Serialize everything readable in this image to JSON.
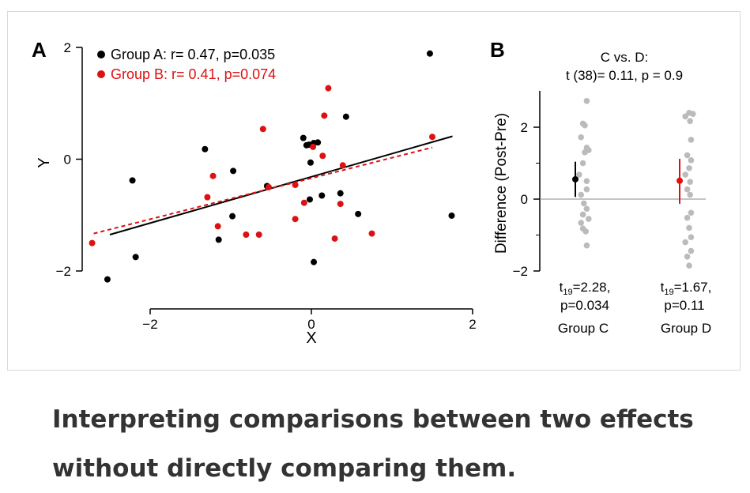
{
  "caption": "Interpreting comparisons between two effects without directly comparing them.",
  "colors": {
    "group_a": "#000000",
    "group_b": "#dd1111",
    "group_d_points": "#bbbbbb",
    "axis": "#000000",
    "zero_line": "#888888"
  },
  "chart_data": [
    {
      "panel_label": "A",
      "type": "scatter",
      "xlabel": "X",
      "ylabel": "Y",
      "xlim": [
        -2.6,
        2.0
      ],
      "ylim": [
        -2.2,
        2.0
      ],
      "x_ticks": [
        -2,
        0,
        2
      ],
      "x_tick_labels": [
        "−2",
        "0",
        "2"
      ],
      "y_ticks": [
        -2,
        0,
        2
      ],
      "y_tick_labels": [
        "−2",
        "0",
        "2"
      ],
      "legend_position": "top-left",
      "series": [
        {
          "name": "Group A: r= 0.47, p=0.035",
          "color": "#000000",
          "fit_line": {
            "style": "solid",
            "x1": -2.5,
            "y1": -1.35,
            "x2": 1.75,
            "y2": 0.41
          },
          "points": [
            [
              -2.53,
              -2.15
            ],
            [
              -2.18,
              -1.75
            ],
            [
              -2.22,
              -0.38
            ],
            [
              -1.32,
              0.18
            ],
            [
              -1.15,
              -1.44
            ],
            [
              -0.97,
              -0.21
            ],
            [
              -0.98,
              -1.02
            ],
            [
              -0.55,
              -0.48
            ],
            [
              -0.1,
              0.38
            ],
            [
              -0.06,
              0.25
            ],
            [
              -0.03,
              0.26
            ],
            [
              0.03,
              0.29
            ],
            [
              0.08,
              0.3
            ],
            [
              -0.01,
              -0.06
            ],
            [
              -0.02,
              -0.72
            ],
            [
              0.03,
              -1.84
            ],
            [
              0.13,
              -0.65
            ],
            [
              0.36,
              -0.61
            ],
            [
              0.43,
              0.76
            ],
            [
              0.58,
              -0.98
            ],
            [
              1.47,
              1.89
            ],
            [
              1.74,
              -1.01
            ]
          ]
        },
        {
          "name": "Group B: r= 0.41, p=0.074",
          "color": "#dd1111",
          "fit_line": {
            "style": "dashed",
            "x1": -2.7,
            "y1": -1.33,
            "x2": 1.5,
            "y2": 0.21
          },
          "points": [
            [
              -2.72,
              -1.5
            ],
            [
              -1.29,
              -0.68
            ],
            [
              -1.22,
              -0.3
            ],
            [
              -1.16,
              -1.2
            ],
            [
              -0.81,
              -1.35
            ],
            [
              -0.65,
              -1.35
            ],
            [
              -0.6,
              0.54
            ],
            [
              -0.53,
              -0.5
            ],
            [
              -0.2,
              -0.46
            ],
            [
              -0.2,
              -1.07
            ],
            [
              -0.09,
              -0.78
            ],
            [
              0.02,
              0.22
            ],
            [
              0.14,
              0.06
            ],
            [
              0.16,
              0.78
            ],
            [
              0.21,
              1.27
            ],
            [
              0.29,
              -1.42
            ],
            [
              0.36,
              -0.8
            ],
            [
              0.39,
              -0.11
            ],
            [
              0.75,
              -1.33
            ],
            [
              1.5,
              0.4
            ]
          ]
        }
      ]
    },
    {
      "panel_label": "B",
      "type": "scatter",
      "title_lines": [
        "C vs. D:",
        "t (38)= 0.11, p = 0.9"
      ],
      "ylabel": "Difference (Post-Pre)",
      "ylim": [
        -2.0,
        2.85
      ],
      "y_ticks": [
        -2,
        0,
        2
      ],
      "y_tick_labels": [
        "−2",
        "0",
        "2"
      ],
      "categories": [
        "Group C",
        "Group D"
      ],
      "groups": [
        {
          "name": "Group C",
          "stat_lines": [
            "t19=2.28,",
            "p=0.034"
          ],
          "stat_t": "t",
          "stat_sub": "19",
          "stat_value": "=2.28,",
          "stat_p": "p=0.034",
          "mean": 0.55,
          "ci": [
            0.06,
            1.04
          ],
          "mean_color": "#000000",
          "points": [
            [
              0.12,
              2.73
            ],
            [
              0.08,
              2.1
            ],
            [
              0.1,
              2.05
            ],
            [
              0.06,
              1.72
            ],
            [
              0.12,
              1.43
            ],
            [
              0.14,
              1.36
            ],
            [
              0.1,
              1.3
            ],
            [
              0.08,
              1.0
            ],
            [
              0.04,
              0.68
            ],
            [
              0.12,
              0.5
            ],
            [
              0.12,
              0.27
            ],
            [
              0.06,
              0.12
            ],
            [
              0.09,
              -0.12
            ],
            [
              0.12,
              -0.27
            ],
            [
              0.08,
              -0.43
            ],
            [
              0.14,
              -0.55
            ],
            [
              0.06,
              -0.66
            ],
            [
              0.08,
              -0.82
            ],
            [
              0.11,
              -0.9
            ],
            [
              0.12,
              -1.29
            ]
          ]
        },
        {
          "name": "Group D",
          "stat_lines": [
            "t19=1.67,",
            "p=0.11"
          ],
          "stat_t": "t",
          "stat_sub": "19",
          "stat_value": "=1.67,",
          "stat_p": "p=0.11",
          "mean": 0.51,
          "ci": [
            -0.13,
            1.12
          ],
          "mean_color": "#dd1111",
          "points": [
            [
              0.1,
              2.4
            ],
            [
              0.14,
              2.37
            ],
            [
              0.06,
              2.3
            ],
            [
              0.11,
              2.17
            ],
            [
              0.12,
              1.65
            ],
            [
              0.08,
              1.22
            ],
            [
              0.12,
              1.08
            ],
            [
              0.1,
              0.86
            ],
            [
              0.06,
              0.68
            ],
            [
              0.11,
              0.48
            ],
            [
              0.08,
              0.27
            ],
            [
              0.11,
              0.12
            ],
            [
              0.12,
              -0.38
            ],
            [
              0.08,
              -0.52
            ],
            [
              0.1,
              -0.8
            ],
            [
              0.12,
              -1.06
            ],
            [
              0.06,
              -1.2
            ],
            [
              0.12,
              -1.44
            ],
            [
              0.08,
              -1.6
            ],
            [
              0.1,
              -1.85
            ]
          ]
        }
      ]
    }
  ]
}
